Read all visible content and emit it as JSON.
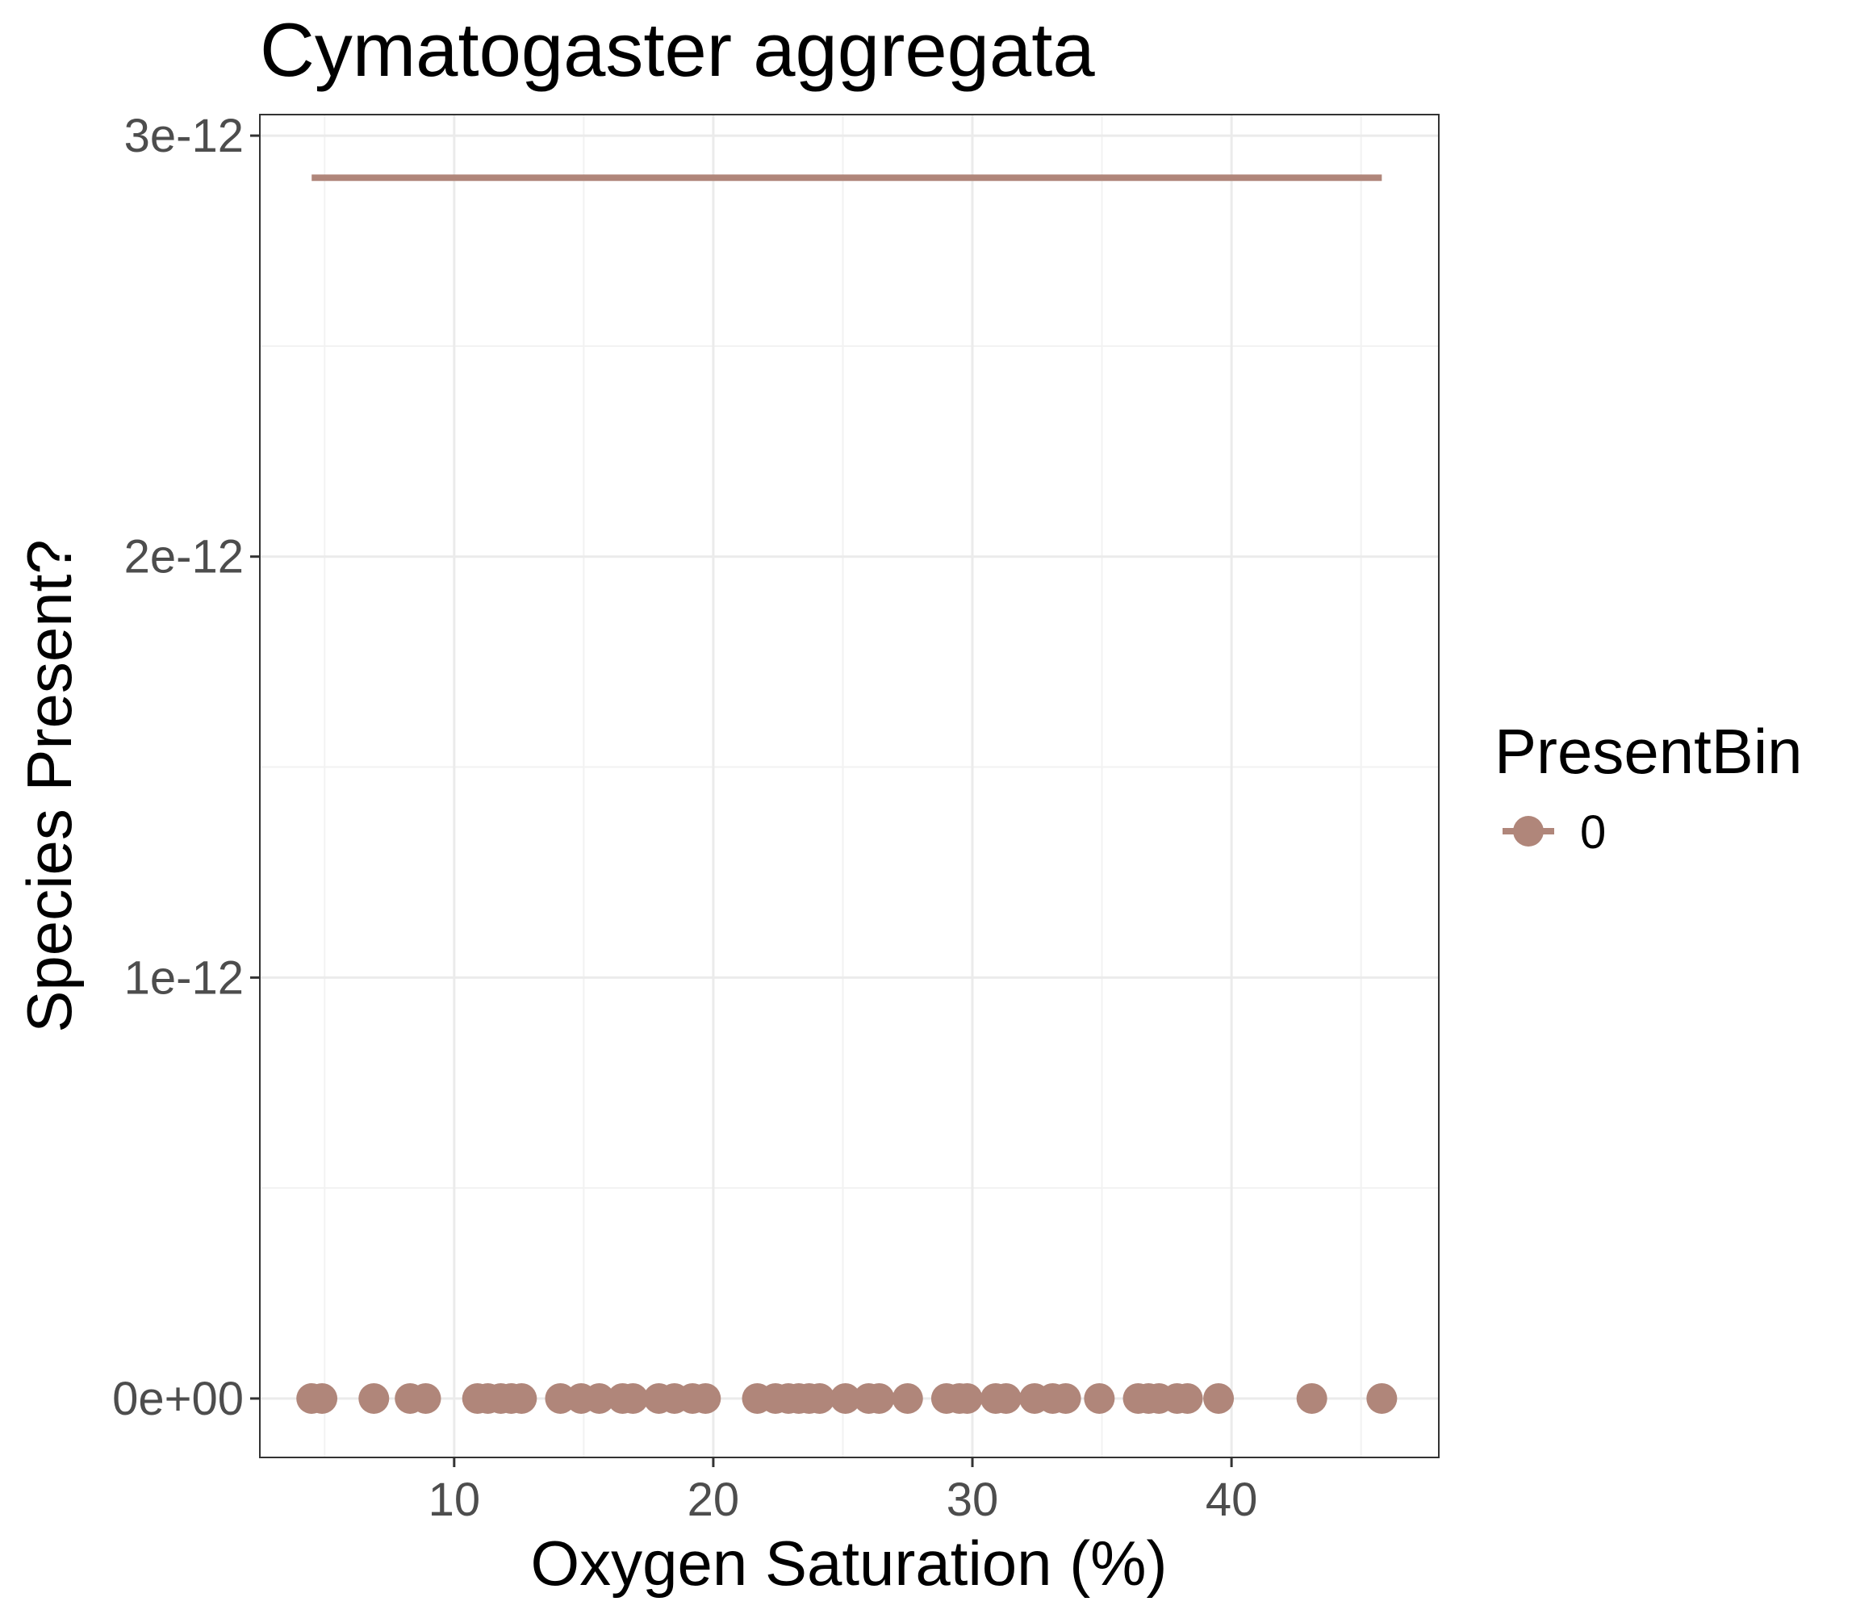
{
  "chart_data": {
    "type": "scatter",
    "title": "Cymatogaster aggregata",
    "xlabel": "Oxygen Saturation (%)",
    "ylabel": "Species Present?",
    "xlim": [
      2.5,
      48
    ],
    "ylim": [
      -1.4e-13,
      3.05e-12
    ],
    "x_ticks": [
      10,
      20,
      30,
      40
    ],
    "x_tick_labels": [
      "10",
      "20",
      "30",
      "40"
    ],
    "y_ticks": [
      0,
      1e-12,
      2e-12,
      3e-12
    ],
    "y_tick_labels": [
      "0e+00",
      "1e-12",
      "2e-12",
      "3e-12"
    ],
    "grid": true,
    "legend": {
      "title": "PresentBin",
      "position": "right",
      "entries": [
        {
          "label": "0",
          "color": "#b0867a"
        }
      ]
    },
    "series": [
      {
        "name": "0",
        "color": "#b0867a",
        "points_x": [
          4.5,
          4.9,
          6.9,
          8.3,
          8.9,
          10.9,
          11.3,
          11.8,
          12.2,
          12.6,
          14.1,
          14.9,
          15.6,
          16.5,
          16.9,
          17.9,
          18.5,
          19.2,
          19.7,
          21.7,
          22.4,
          22.9,
          23.3,
          23.7,
          24.1,
          25.1,
          26.0,
          26.4,
          27.5,
          29.0,
          29.5,
          29.8,
          30.9,
          31.3,
          32.4,
          33.1,
          33.6,
          34.9,
          36.4,
          36.8,
          37.2,
          37.9,
          38.3,
          39.5,
          43.1,
          45.8
        ],
        "points_y": [
          0,
          0,
          0,
          0,
          0,
          0,
          0,
          0,
          0,
          0,
          0,
          0,
          0,
          0,
          0,
          0,
          0,
          0,
          0,
          0,
          0,
          0,
          0,
          0,
          0,
          0,
          0,
          0,
          0,
          0,
          0,
          0,
          0,
          0,
          0,
          0,
          0,
          0,
          0,
          0,
          0,
          0,
          0,
          0,
          0,
          0
        ],
        "fit_line": {
          "x": [
            4.5,
            45.8
          ],
          "y": [
            2.9e-12,
            2.9e-12
          ]
        }
      }
    ]
  }
}
